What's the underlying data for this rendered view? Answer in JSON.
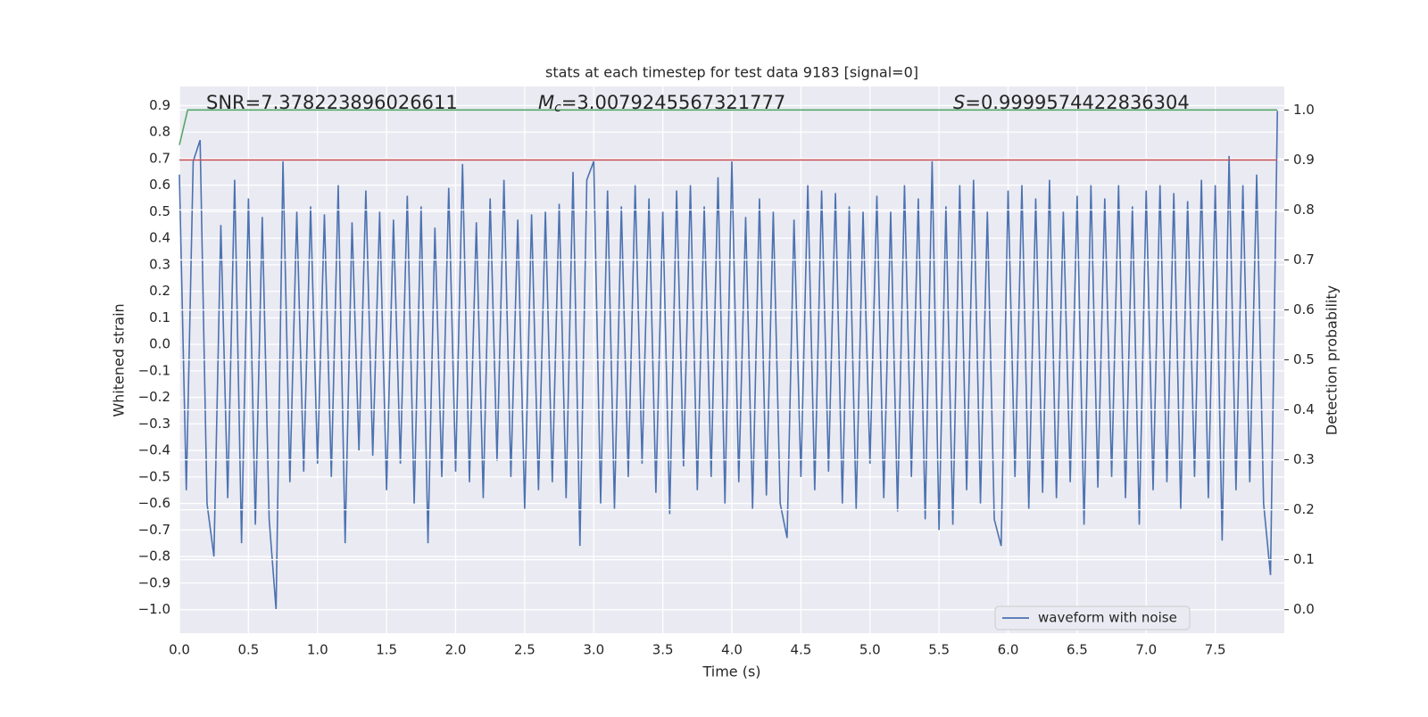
{
  "chart_data": {
    "type": "line",
    "title": "stats at each timestep for test data 9183 [signal=0]",
    "x_label": "Time (s)",
    "y_label": "Whitened strain",
    "y2_label": "Detection probability",
    "annotations": [
      [
        "SNR=7.378223896026611"
      ],
      [
        "M",
        "c",
        "=3.0079245567321777"
      ],
      [
        "S",
        "=0.9999574422836304"
      ]
    ],
    "grid": true,
    "legend": "lower right",
    "xlim": [
      0,
      8
    ],
    "ylim": [
      -1.089,
      0.972
    ],
    "y2lim": [
      -0.047,
      1.047
    ],
    "xticks": [
      {
        "value": 0,
        "label": "0.0"
      },
      0.5,
      {
        "value": 1,
        "label": "1.0"
      },
      1.5,
      {
        "value": 2,
        "label": "2.0"
      },
      2.5,
      {
        "value": 3,
        "label": "3.0"
      },
      3.5,
      {
        "value": 4,
        "label": "4.0"
      },
      4.5,
      {
        "value": 5,
        "label": "5.0"
      },
      5.5,
      {
        "value": 6,
        "label": "6.0"
      },
      6.5,
      {
        "value": 7,
        "label": "7.0"
      },
      7.5
    ],
    "yticks": [
      {
        "value": -1,
        "label": "−1.0"
      },
      {
        "value": -0.9,
        "label": "−0.9"
      },
      {
        "value": -0.8,
        "label": "−0.8"
      },
      {
        "value": -0.7,
        "label": "−0.7"
      },
      {
        "value": -0.6,
        "label": "−0.6"
      },
      {
        "value": -0.5,
        "label": "−0.5"
      },
      {
        "value": -0.4,
        "label": "−0.4"
      },
      {
        "value": -0.3,
        "label": "−0.3"
      },
      {
        "value": -0.2,
        "label": "−0.2"
      },
      {
        "value": -0.1,
        "label": "−0.1"
      },
      {
        "value": 0,
        "label": "0.0"
      },
      0.1,
      0.2,
      0.3,
      0.4,
      0.5,
      0.6,
      0.7,
      0.8,
      0.9
    ],
    "y2ticks": [
      {
        "value": 0,
        "label": "0.0"
      },
      0.1,
      0.2,
      0.3,
      0.4,
      0.5,
      0.6,
      0.7,
      0.8,
      0.9,
      {
        "value": 1,
        "label": "1.0"
      }
    ],
    "series": [
      {
        "name": "waveform with noise",
        "color": "#4c72b0",
        "x": [
          0,
          0.05,
          0.1,
          0.15,
          0.2,
          0.25,
          0.3,
          0.35,
          0.4,
          0.45,
          0.5,
          0.55,
          0.6,
          0.65,
          0.7,
          0.75,
          0.8,
          0.85,
          0.9,
          0.95,
          1,
          1.05,
          1.1,
          1.15,
          1.2,
          1.25,
          1.3,
          1.35,
          1.4,
          1.45,
          1.5,
          1.55,
          1.6,
          1.65,
          1.7,
          1.75,
          1.8,
          1.85,
          1.9,
          1.95,
          2,
          2.05,
          2.1,
          2.15,
          2.2,
          2.25,
          2.3,
          2.35,
          2.4,
          2.45,
          2.5,
          2.55,
          2.6,
          2.65,
          2.7,
          2.75,
          2.8,
          2.85,
          2.9,
          2.95,
          3,
          3.05,
          3.1,
          3.15,
          3.2,
          3.25,
          3.3,
          3.35,
          3.4,
          3.45,
          3.5,
          3.55,
          3.6,
          3.65,
          3.7,
          3.75,
          3.8,
          3.85,
          3.9,
          3.95,
          4,
          4.05,
          4.1,
          4.15,
          4.2,
          4.25,
          4.3,
          4.35,
          4.4,
          4.45,
          4.5,
          4.55,
          4.6,
          4.65,
          4.7,
          4.75,
          4.8,
          4.85,
          4.9,
          4.95,
          5,
          5.05,
          5.1,
          5.15,
          5.2,
          5.25,
          5.3,
          5.35,
          5.4,
          5.45,
          5.5,
          5.55,
          5.6,
          5.65,
          5.7,
          5.75,
          5.8,
          5.85,
          5.9,
          5.95,
          6,
          6.05,
          6.1,
          6.15,
          6.2,
          6.25,
          6.3,
          6.35,
          6.4,
          6.45,
          6.5,
          6.55,
          6.6,
          6.65,
          6.7,
          6.75,
          6.8,
          6.85,
          6.9,
          6.95,
          7,
          7.05,
          7.1,
          7.15,
          7.2,
          7.25,
          7.3,
          7.35,
          7.4,
          7.45,
          7.5,
          7.55,
          7.6,
          7.65,
          7.7,
          7.75,
          7.8,
          7.85,
          7.9,
          7.95
        ],
        "values": [
          0.64,
          -0.55,
          0.69,
          0.77,
          -0.6,
          -0.8,
          0.45,
          -0.58,
          0.62,
          -0.75,
          0.55,
          -0.68,
          0.48,
          -0.66,
          -1.0,
          0.69,
          -0.52,
          0.5,
          -0.48,
          0.52,
          -0.45,
          0.49,
          -0.5,
          0.6,
          -0.75,
          0.46,
          -0.4,
          0.58,
          -0.42,
          0.5,
          -0.55,
          0.47,
          -0.45,
          0.56,
          -0.6,
          0.52,
          -0.75,
          0.44,
          -0.5,
          0.59,
          -0.48,
          0.68,
          -0.52,
          0.46,
          -0.58,
          0.55,
          -0.44,
          0.62,
          -0.5,
          0.47,
          -0.62,
          0.49,
          -0.55,
          0.5,
          -0.52,
          0.53,
          -0.58,
          0.65,
          -0.76,
          0.62,
          0.69,
          -0.6,
          0.58,
          -0.62,
          0.52,
          -0.5,
          0.6,
          -0.45,
          0.55,
          -0.56,
          0.5,
          -0.64,
          0.58,
          -0.46,
          0.6,
          -0.55,
          0.52,
          -0.5,
          0.63,
          -0.6,
          0.69,
          -0.52,
          0.48,
          -0.62,
          0.55,
          -0.57,
          0.5,
          -0.6,
          -0.73,
          0.47,
          -0.5,
          0.6,
          -0.55,
          0.58,
          -0.48,
          0.57,
          -0.6,
          0.52,
          -0.62,
          0.5,
          -0.45,
          0.56,
          -0.58,
          0.5,
          -0.63,
          0.6,
          -0.5,
          0.55,
          -0.66,
          0.69,
          -0.7,
          0.52,
          -0.68,
          0.6,
          -0.55,
          0.62,
          -0.6,
          0.5,
          -0.66,
          -0.76,
          0.58,
          -0.5,
          0.6,
          -0.62,
          0.55,
          -0.56,
          0.62,
          -0.58,
          0.5,
          -0.52,
          0.56,
          -0.68,
          0.6,
          -0.54,
          0.55,
          -0.5,
          0.6,
          -0.58,
          0.52,
          -0.68,
          0.58,
          -0.55,
          0.6,
          -0.52,
          0.57,
          -0.62,
          0.54,
          -0.5,
          0.62,
          -0.58,
          0.6,
          -0.74,
          0.71,
          -0.55,
          0.6,
          -0.52,
          0.64,
          -0.6,
          -0.87,
          0.88
        ]
      },
      {
        "color": "#55a868",
        "axis": "y2",
        "x": [
          0,
          0.06,
          7.95
        ],
        "values": [
          0.93,
          1.0,
          1.0
        ]
      },
      {
        "color": "#c44e52",
        "axis": "y2",
        "x": [
          0,
          7.95
        ],
        "values": [
          0.9,
          0.9
        ]
      }
    ]
  }
}
